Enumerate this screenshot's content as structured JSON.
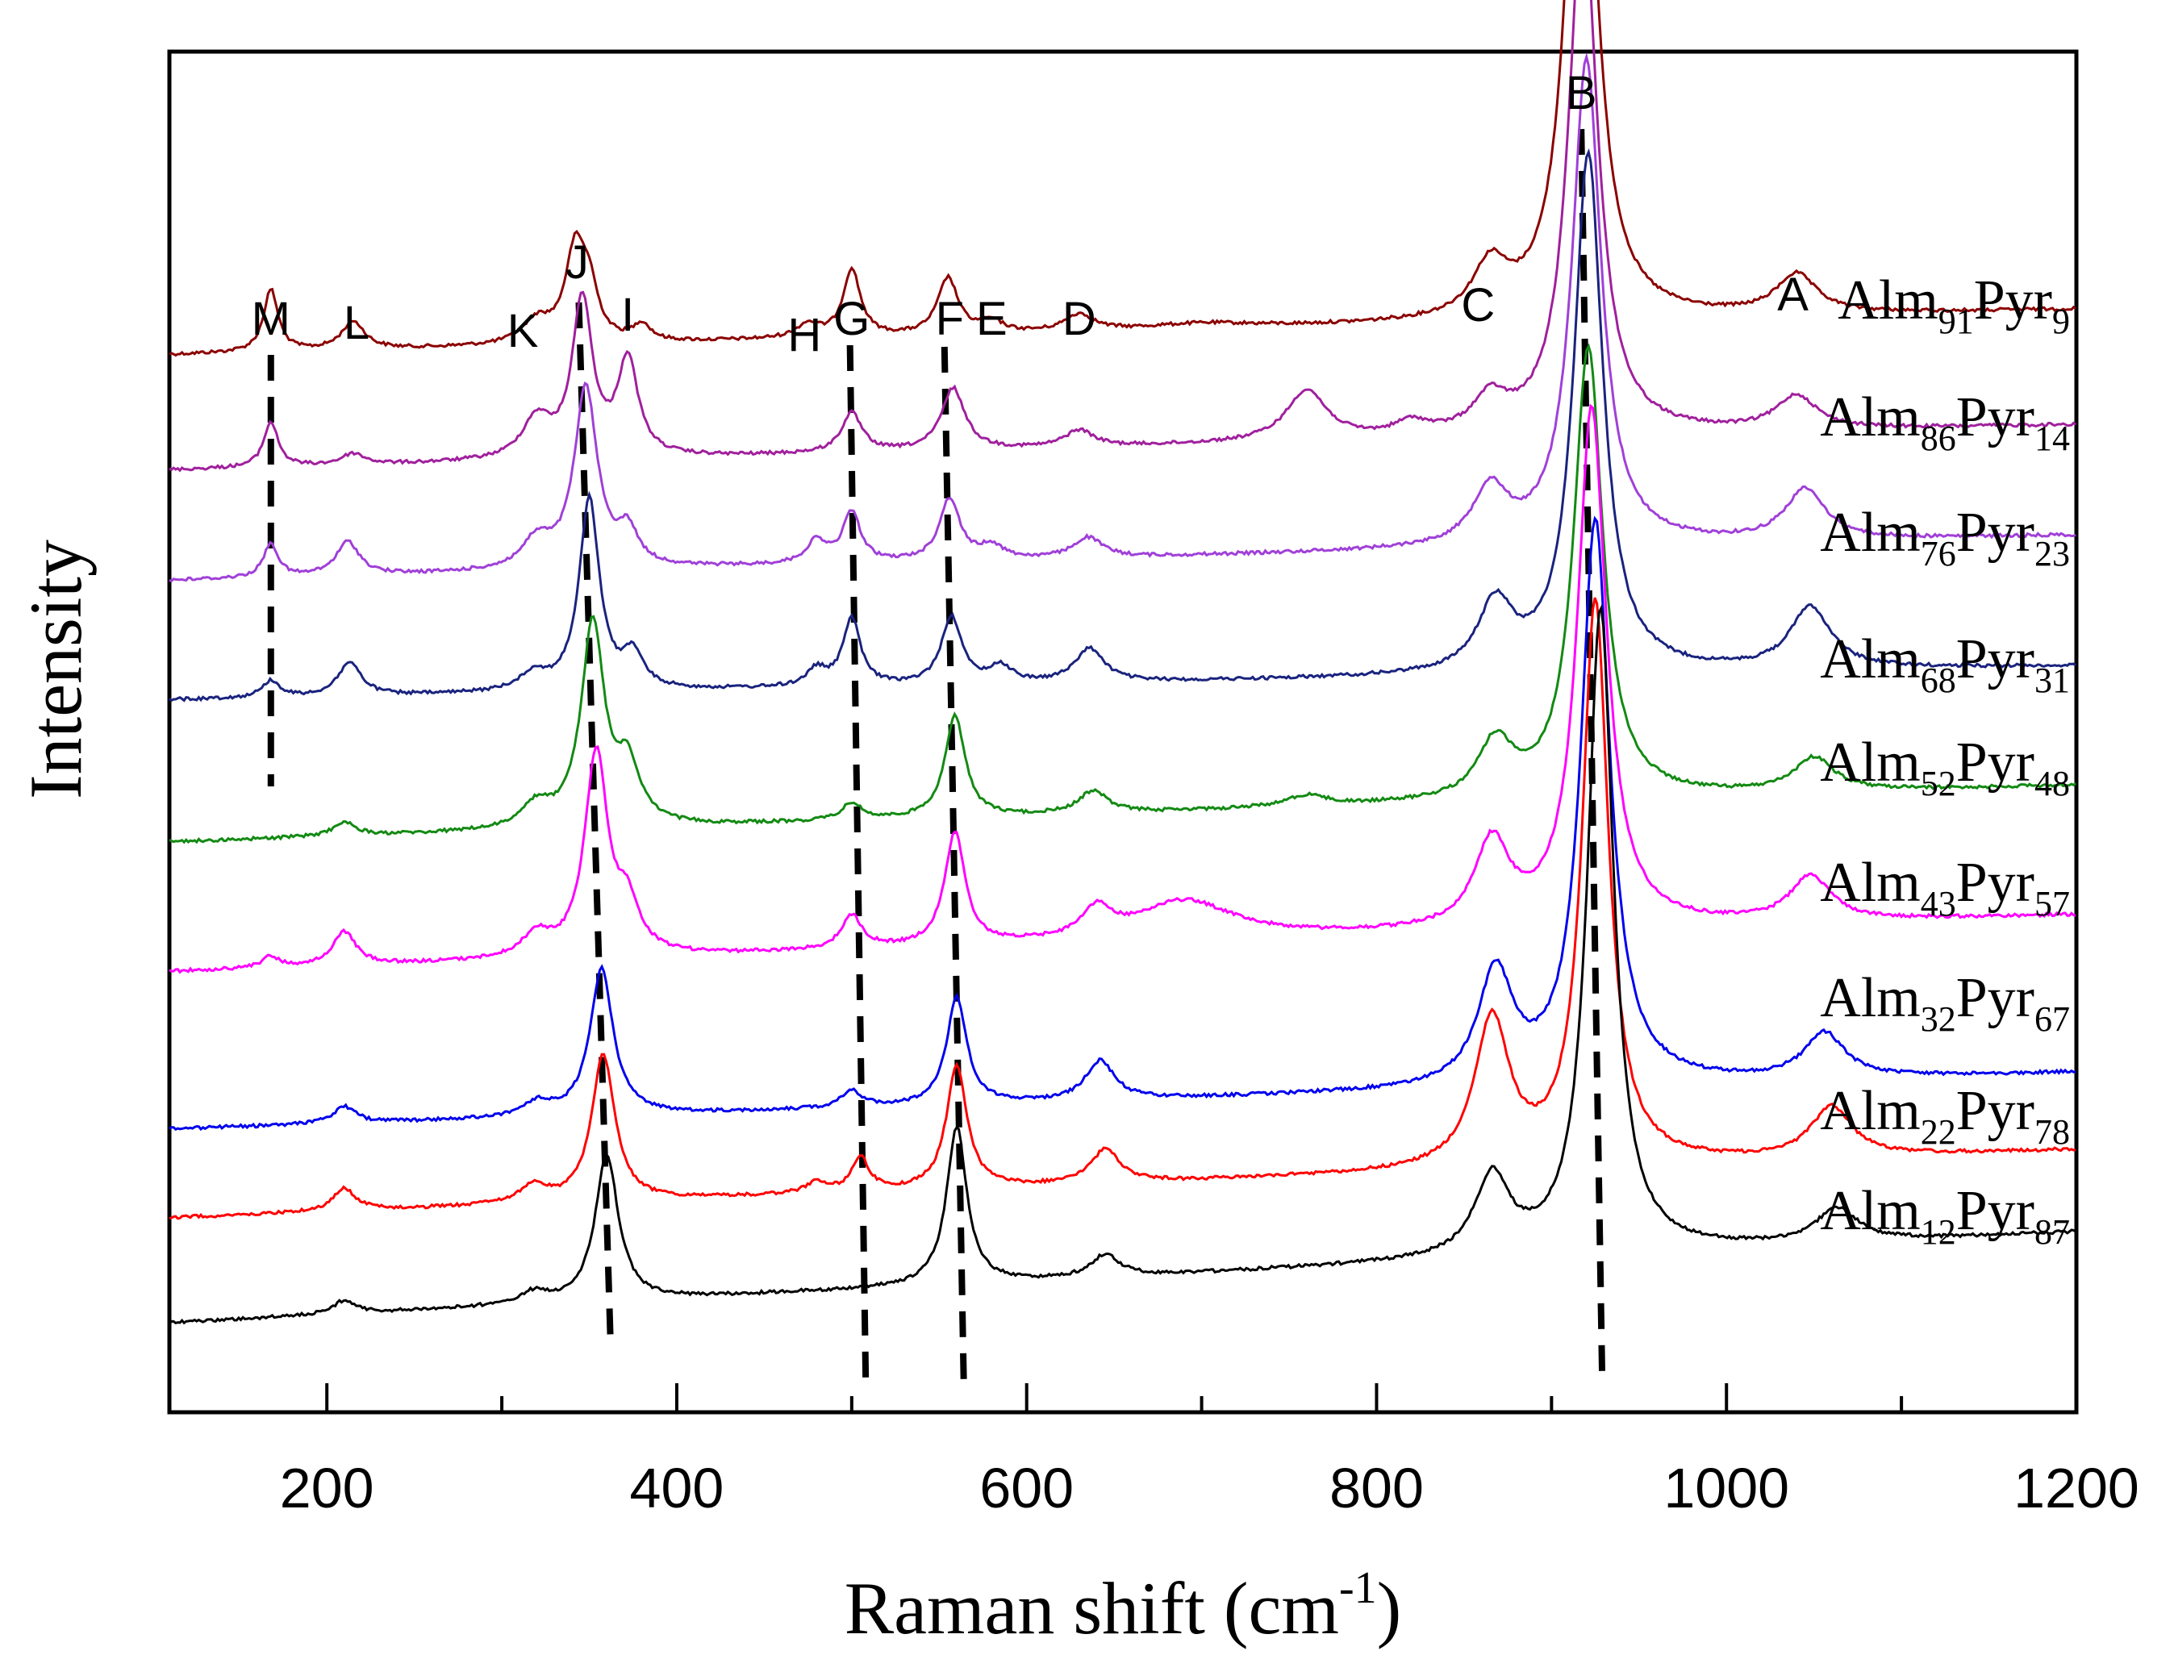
{
  "chart_data": {
    "type": "line",
    "title": "",
    "xlabel": "Raman shift",
    "xlabel_unit_base": "cm",
    "xlabel_unit_exp": "-1",
    "ylabel": "Intensity",
    "xlim": [
      110,
      1200
    ],
    "x_ticks_major": [
      200,
      400,
      600,
      800,
      1000,
      1200
    ],
    "x_ticks_minor": [
      300,
      500,
      700,
      900,
      1100
    ],
    "x_tick_labels": [
      "200",
      "400",
      "600",
      "800",
      "1000",
      "1200"
    ],
    "y_ticks": false,
    "series": [
      {
        "name": "Alm91Pyr9",
        "label_base": "Alm",
        "label_a": "91",
        "label_mid": "Pyr",
        "label_b": "9",
        "color": "#8b0000",
        "offset": 8,
        "slope": 0.4,
        "peaks": [
          [
            168,
            0.55,
            5
          ],
          [
            215,
            0.25,
            8
          ],
          [
            320,
            0.2,
            10
          ],
          [
            342,
            0.8,
            7
          ],
          [
            350,
            0.4,
            6
          ],
          [
            380,
            0.15,
            6
          ],
          [
            475,
            0.12,
            8
          ],
          [
            500,
            0.6,
            6
          ],
          [
            555,
            0.5,
            7
          ],
          [
            580,
            0.1,
            8
          ],
          [
            630,
            0.15,
            10
          ],
          [
            700,
            0.05,
            40
          ],
          [
            865,
            0.45,
            12
          ],
          [
            917,
            5.5,
            10
          ],
          [
            1040,
            0.35,
            14
          ]
        ]
      },
      {
        "name": "Alm86Pyr14",
        "label_base": "Alm",
        "label_a": "86",
        "label_mid": "Pyr",
        "label_b": "14",
        "color": "#a0209d",
        "offset": 7,
        "slope": 0.4,
        "peaks": [
          [
            168,
            0.4,
            5
          ],
          [
            215,
            0.1,
            8
          ],
          [
            320,
            0.35,
            10
          ],
          [
            346,
            1.4,
            7
          ],
          [
            372,
            0.85,
            7
          ],
          [
            500,
            0.35,
            7
          ],
          [
            558,
            0.55,
            8
          ],
          [
            630,
            0.15,
            10
          ],
          [
            760,
            0.45,
            14
          ],
          [
            820,
            0.12,
            12
          ],
          [
            865,
            0.3,
            12
          ],
          [
            918,
            4.7,
            10
          ],
          [
            1040,
            0.3,
            14
          ]
        ]
      },
      {
        "name": "Alm76Pyr23",
        "label_base": "Alm",
        "label_a": "76",
        "label_mid": "Pyr",
        "label_b": "23",
        "color": "#a040d8",
        "offset": 6,
        "slope": 0.4,
        "peaks": [
          [
            168,
            0.3,
            5
          ],
          [
            212,
            0.3,
            8
          ],
          [
            320,
            0.25,
            10
          ],
          [
            348,
            1.6,
            8
          ],
          [
            372,
            0.3,
            7
          ],
          [
            480,
            0.2,
            7
          ],
          [
            500,
            0.45,
            6
          ],
          [
            556,
            0.55,
            7
          ],
          [
            580,
            0.12,
            8
          ],
          [
            635,
            0.18,
            10
          ],
          [
            865,
            0.5,
            12
          ],
          [
            920,
            4.3,
            10
          ],
          [
            1045,
            0.45,
            14
          ]
        ]
      },
      {
        "name": "Alm68Pyr31",
        "label_base": "Alm",
        "label_a": "68",
        "label_mid": "Pyr",
        "label_b": "31",
        "color": "#1a237e",
        "offset": 5,
        "slope": 0.3,
        "peaks": [
          [
            168,
            0.15,
            6
          ],
          [
            213,
            0.3,
            8
          ],
          [
            318,
            0.15,
            10
          ],
          [
            350,
            1.7,
            7
          ],
          [
            375,
            0.3,
            7
          ],
          [
            480,
            0.15,
            7
          ],
          [
            500,
            0.6,
            6
          ],
          [
            557,
            0.6,
            7
          ],
          [
            585,
            0.15,
            8
          ],
          [
            636,
            0.3,
            10
          ],
          [
            868,
            0.6,
            12
          ],
          [
            921,
            4.6,
            10
          ],
          [
            1048,
            0.55,
            14
          ]
        ]
      },
      {
        "name": "Alm52Pyr48",
        "label_base": "Alm",
        "label_a": "52",
        "label_mid": "Pyr",
        "label_b": "48",
        "color": "#138a13",
        "offset": 4,
        "slope": 0.5,
        "peaks": [
          [
            210,
            0.12,
            8
          ],
          [
            320,
            0.2,
            10
          ],
          [
            352,
            1.8,
            8
          ],
          [
            372,
            0.5,
            8
          ],
          [
            500,
            0.15,
            7
          ],
          [
            559,
            0.9,
            7
          ],
          [
            638,
            0.2,
            10
          ],
          [
            760,
            0.1,
            14
          ],
          [
            868,
            0.5,
            12
          ],
          [
            921,
            4.0,
            10
          ],
          [
            1050,
            0.3,
            14
          ]
        ]
      },
      {
        "name": "Alm43Pyr57",
        "label_base": "Alm",
        "label_a": "43",
        "label_mid": "Pyr",
        "label_b": "57",
        "color": "#ff00ff",
        "offset": 3,
        "slope": 0.5,
        "peaks": [
          [
            168,
            0.1,
            6
          ],
          [
            210,
            0.3,
            8
          ],
          [
            320,
            0.2,
            10
          ],
          [
            354,
            1.8,
            8
          ],
          [
            372,
            0.4,
            8
          ],
          [
            500,
            0.3,
            7
          ],
          [
            559,
            1.0,
            7
          ],
          [
            640,
            0.25,
            10
          ],
          [
            690,
            0.35,
            35
          ],
          [
            866,
            0.75,
            12
          ],
          [
            923,
            4.6,
            10
          ],
          [
            1048,
            0.4,
            14
          ]
        ]
      },
      {
        "name": "Alm32Pyr67",
        "label_base": "Alm",
        "label_a": "32",
        "label_mid": "Pyr",
        "label_b": "67",
        "color": "#0000ee",
        "offset": 2,
        "slope": 0.5,
        "peaks": [
          [
            210,
            0.15,
            8
          ],
          [
            320,
            0.12,
            10
          ],
          [
            357,
            1.3,
            8
          ],
          [
            500,
            0.15,
            7
          ],
          [
            560,
            0.95,
            7
          ],
          [
            642,
            0.35,
            10
          ],
          [
            868,
            1.0,
            12
          ],
          [
            925,
            5.0,
            10
          ],
          [
            1056,
            0.4,
            14
          ]
        ]
      },
      {
        "name": "Alm22Pyr78",
        "label_base": "Alm",
        "label_a": "22",
        "label_mid": "Pyr",
        "label_b": "78",
        "color": "#ff0000",
        "offset": 1,
        "slope": 0.6,
        "peaks": [
          [
            210,
            0.2,
            8
          ],
          [
            318,
            0.15,
            10
          ],
          [
            358,
            1.3,
            8
          ],
          [
            480,
            0.1,
            7
          ],
          [
            505,
            0.3,
            6
          ],
          [
            560,
            1.1,
            7
          ],
          [
            645,
            0.3,
            10
          ],
          [
            866,
            1.3,
            12
          ],
          [
            925,
            5.0,
            9
          ],
          [
            1060,
            0.45,
            14
          ]
        ]
      },
      {
        "name": "Alm12Pyr87",
        "label_base": "Alm",
        "label_a": "12",
        "label_mid": "Pyr",
        "label_b": "87",
        "color": "#000000",
        "offset": 0,
        "slope": 0.8,
        "peaks": [
          [
            210,
            0.12,
            8
          ],
          [
            318,
            0.1,
            10
          ],
          [
            360,
            1.3,
            8
          ],
          [
            560,
            1.4,
            7
          ],
          [
            645,
            0.2,
            10
          ],
          [
            866,
            0.7,
            12
          ],
          [
            928,
            5.7,
            9
          ],
          [
            1063,
            0.3,
            14
          ]
        ]
      }
    ],
    "peak_labels": [
      {
        "label": "M",
        "x": 168
      },
      {
        "label": "L",
        "x": 217
      },
      {
        "label": "K",
        "x": 312
      },
      {
        "label": "J",
        "x": 343
      },
      {
        "label": "I",
        "x": 372
      },
      {
        "label": "H",
        "x": 473
      },
      {
        "label": "G",
        "x": 500
      },
      {
        "label": "F",
        "x": 556
      },
      {
        "label": "E",
        "x": 580
      },
      {
        "label": "D",
        "x": 630
      },
      {
        "label": "C",
        "x": 858
      },
      {
        "label": "B",
        "x": 917
      },
      {
        "label": "A",
        "x": 1038
      }
    ],
    "guide_lines": [
      {
        "name": "M",
        "x_top": 168,
        "x_bottom": 168,
        "top_series": 0,
        "bottom_series": 4
      },
      {
        "name": "J",
        "x_top": 344,
        "x_bottom": 362,
        "top_series": 0,
        "bottom_series": 9
      },
      {
        "name": "G",
        "x_top": 499,
        "x_bottom": 508,
        "top_series": 0,
        "bottom_series": 9
      },
      {
        "name": "F",
        "x_top": 553,
        "x_bottom": 564,
        "top_series": 0,
        "bottom_series": 9
      },
      {
        "name": "B",
        "x_top": 917,
        "x_bottom": 929,
        "top_series": -1,
        "bottom_series": 9
      }
    ]
  }
}
